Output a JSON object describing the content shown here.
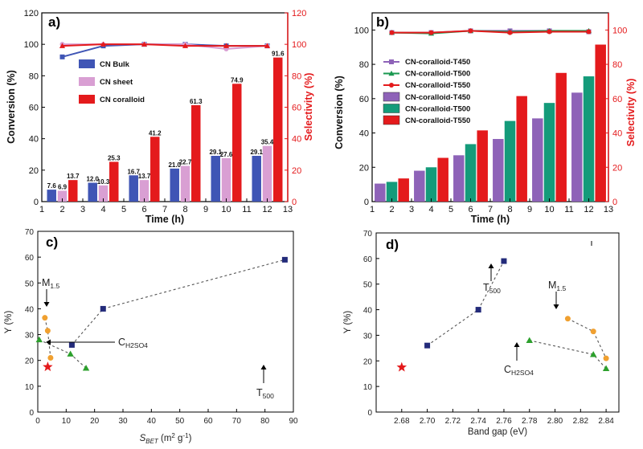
{
  "chart_data": [
    {
      "type": "bar",
      "panel_label": "a)",
      "xlabel": "Time (h)",
      "ylabel": "Conversion (%)",
      "ylabel_right": "Selectivity (%)",
      "xlim": [
        1,
        13
      ],
      "ylim": [
        0,
        120
      ],
      "xticks": [
        "1",
        "2",
        "3",
        "4",
        "5",
        "6",
        "7",
        "8",
        "9",
        "10",
        "11",
        "12",
        "13"
      ],
      "yticks": [
        "0",
        "20",
        "40",
        "60",
        "80",
        "100",
        "120"
      ],
      "yticks_right": [
        "0",
        "20",
        "40",
        "60",
        "80",
        "100",
        "120"
      ],
      "categories": [
        2,
        4,
        6,
        8,
        10,
        12
      ],
      "series": [
        {
          "name": "CN Bulk",
          "color": "#3f55b5",
          "values": [
            7.6,
            12.0,
            16.7,
            21.0,
            29.1,
            29.1
          ],
          "labels": [
            "7.6",
            "12.0",
            "16.7",
            "21.0",
            "29.1",
            "29.1"
          ]
        },
        {
          "name": "CN sheet",
          "color": "#d99fd3",
          "values": [
            6.9,
            10.3,
            13.7,
            22.7,
            27.6,
            35.4
          ],
          "labels": [
            "6.9",
            "10.3",
            "13.7",
            "22.7",
            "27.6",
            "35.4"
          ]
        },
        {
          "name": "CN coralloid",
          "color": "#e41a1c",
          "values": [
            13.7,
            25.3,
            41.2,
            61.3,
            74.9,
            91.6
          ],
          "labels": [
            "13.7",
            "25.3",
            "41.2",
            "61.3",
            "74.9",
            "91.6"
          ]
        }
      ],
      "selectivity_lines": [
        {
          "color": "#3f55b5",
          "marker": "square",
          "x": [
            2,
            4,
            6,
            8,
            10,
            12
          ],
          "values": [
            92,
            99,
            100,
            100,
            99,
            99
          ]
        },
        {
          "color": "#d99fd3",
          "marker": "circle",
          "x": [
            2,
            4,
            6,
            8,
            10,
            12
          ],
          "values": [
            100,
            100,
            100,
            100,
            97,
            99
          ]
        },
        {
          "color": "#e41a1c",
          "marker": "triangle",
          "x": [
            2,
            4,
            6,
            8,
            10,
            12
          ],
          "values": [
            99,
            100,
            100,
            99,
            99,
            99
          ]
        }
      ]
    },
    {
      "type": "bar",
      "panel_label": "b)",
      "xlabel": "Time (h)",
      "ylabel": "Conversion (%)",
      "ylabel_right": "Selectivity (%)",
      "xlim": [
        1,
        13
      ],
      "ylim": [
        0,
        110
      ],
      "xticks": [
        "1",
        "2",
        "3",
        "4",
        "5",
        "6",
        "7",
        "8",
        "9",
        "10",
        "11",
        "12",
        "13"
      ],
      "yticks": [
        "0",
        "20",
        "40",
        "60",
        "80",
        "100"
      ],
      "yticks_right": [
        "0",
        "20",
        "40",
        "60",
        "80",
        "100"
      ],
      "categories": [
        2,
        4,
        6,
        8,
        10,
        12
      ],
      "series": [
        {
          "name": "CN-coralloid-T450",
          "color": "#8e63b8",
          "values": [
            10.5,
            18,
            27,
            36.5,
            48.5,
            63.5
          ]
        },
        {
          "name": "CN-coralloid-T500",
          "color": "#149b7a",
          "values": [
            11.5,
            20,
            33.5,
            47,
            57.5,
            73
          ]
        },
        {
          "name": "CN-coralloid-T550",
          "color": "#e41a1c",
          "values": [
            13.5,
            25.5,
            41.5,
            61.5,
            75,
            91.5
          ]
        }
      ],
      "selectivity_lines": [
        {
          "name": "CN-coralloid-T450",
          "color": "#8e63b8",
          "marker": "square",
          "x": [
            2,
            4,
            6,
            8,
            10,
            12
          ],
          "values": [
            98.5,
            98.5,
            99.5,
            99.5,
            99.5,
            99
          ]
        },
        {
          "name": "CN-coralloid-T500",
          "color": "#1a9850",
          "marker": "triangle",
          "x": [
            2,
            4,
            6,
            8,
            10,
            12
          ],
          "values": [
            98.5,
            98,
            99.5,
            99,
            99.5,
            99.5
          ]
        },
        {
          "name": "CN-coralloid-T550",
          "color": "#e41a1c",
          "marker": "circle",
          "x": [
            2,
            4,
            6,
            8,
            10,
            12
          ],
          "values": [
            98.5,
            98.5,
            99.5,
            98.5,
            99,
            99
          ]
        }
      ]
    },
    {
      "type": "scatter",
      "panel_label": "c)",
      "xlabel_main": "S",
      "xlabel_sub": "BET",
      "xlabel_units": " (m",
      "xlabel_sup": "2",
      "xlabel_end": " g",
      "xlabel_sup2": "-1",
      "xlabel_close": ")",
      "ylabel": "Y (%)",
      "xlim": [
        0,
        90
      ],
      "ylim": [
        0,
        70
      ],
      "xticks": [
        "0",
        "10",
        "20",
        "30",
        "40",
        "50",
        "60",
        "70",
        "80",
        "90"
      ],
      "yticks": [
        "0",
        "10",
        "20",
        "30",
        "40",
        "50",
        "60",
        "70"
      ],
      "series": [
        {
          "marker": "square",
          "color": "#232b7a",
          "x": [
            12,
            23,
            87
          ],
          "y": [
            26,
            40,
            59
          ],
          "dashed": true
        },
        {
          "marker": "circle",
          "color": "#f0a030",
          "x": [
            2.5,
            3.5,
            4.5
          ],
          "y": [
            36.5,
            31.5,
            21
          ],
          "dashed": true
        },
        {
          "marker": "triangle",
          "color": "#2ca02c",
          "x": [
            0.5,
            11.5,
            17
          ],
          "y": [
            28,
            22.5,
            17
          ],
          "dashed": true
        },
        {
          "marker": "star",
          "color": "#e41a1c",
          "x": [
            3.5
          ],
          "y": [
            17.5
          ],
          "dashed": false
        }
      ],
      "annotations": [
        {
          "text": "M",
          "sub": "1.5"
        },
        {
          "text": "T",
          "sub": "500"
        },
        {
          "text": "C",
          "sub": "H2SO4"
        }
      ]
    },
    {
      "type": "scatter",
      "panel_label": "d)",
      "xlabel": "Band gap (eV)",
      "ylabel": "Y (%)",
      "xlim": [
        2.66,
        2.85
      ],
      "ylim": [
        0,
        70
      ],
      "xticks": [
        "2.68",
        "2.70",
        "2.72",
        "2.74",
        "2.76",
        "2.78",
        "2.80",
        "2.82",
        "2.84"
      ],
      "yticks": [
        "0",
        "10",
        "20",
        "30",
        "40",
        "50",
        "60",
        "70"
      ],
      "series": [
        {
          "marker": "square",
          "color": "#232b7a",
          "x": [
            2.7,
            2.74,
            2.76
          ],
          "y": [
            26,
            40,
            59
          ],
          "dashed": true
        },
        {
          "marker": "circle",
          "color": "#f0a030",
          "x": [
            2.81,
            2.83,
            2.84
          ],
          "y": [
            36.5,
            31.5,
            21
          ],
          "dashed": true
        },
        {
          "marker": "triangle",
          "color": "#2ca02c",
          "x": [
            2.78,
            2.83,
            2.84
          ],
          "y": [
            28,
            22.5,
            17
          ],
          "dashed": true
        },
        {
          "marker": "star",
          "color": "#e41a1c",
          "x": [
            2.68
          ],
          "y": [
            17.5
          ],
          "dashed": false
        }
      ],
      "annotations": [
        {
          "text": "M",
          "sub": "1.5"
        },
        {
          "text": "T",
          "sub": "500"
        },
        {
          "text": "C",
          "sub": "H2SO4"
        }
      ]
    }
  ]
}
